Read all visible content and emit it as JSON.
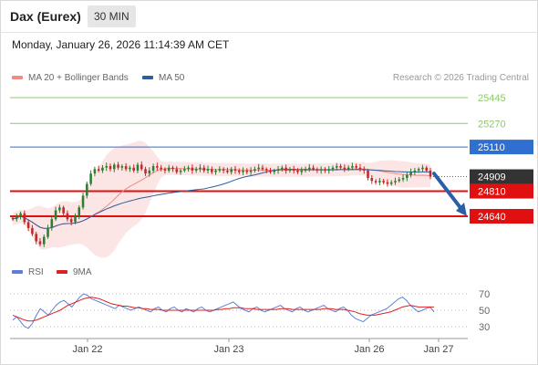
{
  "header": {
    "title": "Dax (Eurex)",
    "timeframe": "30 MIN"
  },
  "datetime": "Monday, January 26, 2026 11:14:39 AM CET",
  "legend_main": [
    {
      "label": "MA 20 + Bollinger Bands",
      "color": "#f08a84"
    },
    {
      "label": "MA 50",
      "color": "#2e5e9e"
    }
  ],
  "credit": "Research © 2026 Trading Central",
  "legend_rsi": [
    {
      "label": "RSI",
      "color": "#5b7fd6"
    },
    {
      "label": "9MA",
      "color": "#e02020"
    }
  ],
  "colors": {
    "resistance": "#8ec86a",
    "pivot": "#2f6fd0",
    "support": "#e01010",
    "last": "#333333",
    "candle_up": "#2e7d32",
    "candle_down": "#c62828",
    "band": "#fbe0e0",
    "arrow": "#2a5fa8"
  },
  "chart_data": {
    "type": "candlestick",
    "instrument": "Dax (Eurex)",
    "interval": "30 MIN",
    "price_levels": [
      {
        "label": "25445",
        "value": 25445,
        "kind": "resistance"
      },
      {
        "label": "25270",
        "value": 25270,
        "kind": "resistance"
      },
      {
        "label": "25110",
        "value": 25110,
        "kind": "pivot"
      },
      {
        "label": "24909",
        "value": 24909,
        "kind": "last"
      },
      {
        "label": "24810",
        "value": 24810,
        "kind": "support"
      },
      {
        "label": "24640",
        "value": 24640,
        "kind": "support"
      }
    ],
    "x_ticks": [
      "Jan 22",
      "Jan 23",
      "Jan 26",
      "Jan 27"
    ],
    "close_series": [
      24620,
      24640,
      24660,
      24600,
      24560,
      24520,
      24470,
      24450,
      24500,
      24560,
      24620,
      24680,
      24700,
      24660,
      24620,
      24600,
      24640,
      24700,
      24780,
      24860,
      24930,
      24960,
      24950,
      24970,
      24980,
      24960,
      24990,
      24970,
      24980,
      24960,
      24970,
      24950,
      24990,
      24960,
      24930,
      24950,
      24980,
      24970,
      24960,
      24950,
      24970,
      24960,
      24940,
      24950,
      24960,
      24970,
      24950,
      24960,
      24970,
      24950,
      24960,
      24940,
      24950,
      24960,
      24950,
      24940,
      24960,
      24950,
      24940,
      24950,
      24940,
      24950,
      24960,
      24970,
      24960,
      24950,
      24940,
      24950,
      24960,
      24970,
      24950,
      24960,
      24950,
      24940,
      24950,
      24960,
      24970,
      24960,
      24950,
      24960,
      24950,
      24960,
      24970,
      24980,
      24970,
      24960,
      24970,
      24980,
      24970,
      24960,
      24950,
      24900,
      24880,
      24870,
      24880,
      24870,
      24860,
      24870,
      24880,
      24890,
      24900,
      24920,
      24940,
      24950,
      24960,
      24970,
      24950,
      24910
    ],
    "rsi": {
      "levels": [
        70,
        50,
        30
      ],
      "rsi_series": [
        38,
        42,
        36,
        30,
        28,
        34,
        44,
        52,
        48,
        44,
        50,
        56,
        60,
        62,
        58,
        54,
        60,
        66,
        70,
        68,
        64,
        62,
        60,
        58,
        56,
        54,
        52,
        56,
        54,
        52,
        50,
        52,
        54,
        52,
        50,
        48,
        52,
        54,
        50,
        48,
        52,
        54,
        50,
        48,
        52,
        50,
        48,
        52,
        54,
        50,
        48,
        50,
        52,
        54,
        56,
        58,
        60,
        56,
        52,
        50,
        48,
        52,
        54,
        50,
        48,
        50,
        52,
        54,
        56,
        52,
        50,
        48,
        52,
        54,
        50,
        48,
        50,
        52,
        54,
        56,
        52,
        50,
        48,
        52,
        54,
        50,
        44,
        40,
        38,
        36,
        40,
        44,
        46,
        48,
        50,
        52,
        56,
        60,
        64,
        66,
        62,
        56,
        52,
        48,
        50,
        52,
        54,
        48
      ],
      "ma9_series": [
        44,
        42,
        40,
        38,
        37,
        37,
        38,
        40,
        42,
        44,
        46,
        48,
        50,
        53,
        56,
        58,
        60,
        62,
        64,
        65,
        66,
        65,
        64,
        62,
        60,
        58,
        57,
        56,
        55,
        55,
        54,
        53,
        53,
        52,
        52,
        51,
        51,
        51,
        50,
        50,
        50,
        50,
        50,
        50,
        50,
        50,
        50,
        50,
        50,
        50,
        50,
        50,
        51,
        51,
        52,
        52,
        53,
        53,
        53,
        52,
        52,
        52,
        51,
        51,
        51,
        51,
        51,
        51,
        52,
        52,
        52,
        51,
        51,
        51,
        51,
        51,
        51,
        51,
        51,
        52,
        52,
        52,
        51,
        51,
        51,
        50,
        49,
        48,
        46,
        45,
        44,
        44,
        44,
        45,
        46,
        47,
        48,
        50,
        52,
        54,
        55,
        56,
        55,
        54,
        54,
        54,
        54,
        54
      ]
    }
  }
}
